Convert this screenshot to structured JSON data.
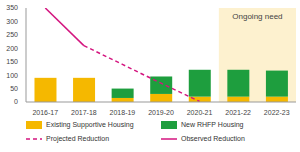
{
  "chart_data": {
    "type": "bar",
    "stacked": true,
    "grid": false,
    "legend": "bottom",
    "categories": [
      "2016-17",
      "2017-18",
      "2018-19",
      "2019-20",
      "2020-21",
      "2021-22",
      "2022-23"
    ],
    "ylim": [
      0,
      350
    ],
    "yticks": [
      0,
      50,
      100,
      150,
      200,
      250,
      300,
      350
    ],
    "series": [
      {
        "name": "Existing Supportive Housing",
        "type": "bar",
        "color": "#f5b800",
        "values": [
          90,
          90,
          15,
          30,
          20,
          20,
          20
        ]
      },
      {
        "name": "New RHFP Housing",
        "type": "bar",
        "color": "#1e9e3e",
        "values": [
          0,
          0,
          35,
          65,
          100,
          100,
          97
        ]
      },
      {
        "name": "Projected Reduction",
        "type": "line",
        "line_style": "dashed",
        "color": "#d4157f",
        "values": [
          null,
          210,
          140,
          70,
          2,
          null,
          null
        ]
      },
      {
        "name": "Observed Reduction",
        "type": "line",
        "line_style": "solid",
        "color": "#d4157f",
        "values": [
          350,
          210,
          null,
          null,
          null,
          null,
          null
        ]
      }
    ],
    "annotations": [
      {
        "text": "Ongoing need",
        "x1": "2021-22",
        "x2": "2022-23"
      }
    ]
  }
}
